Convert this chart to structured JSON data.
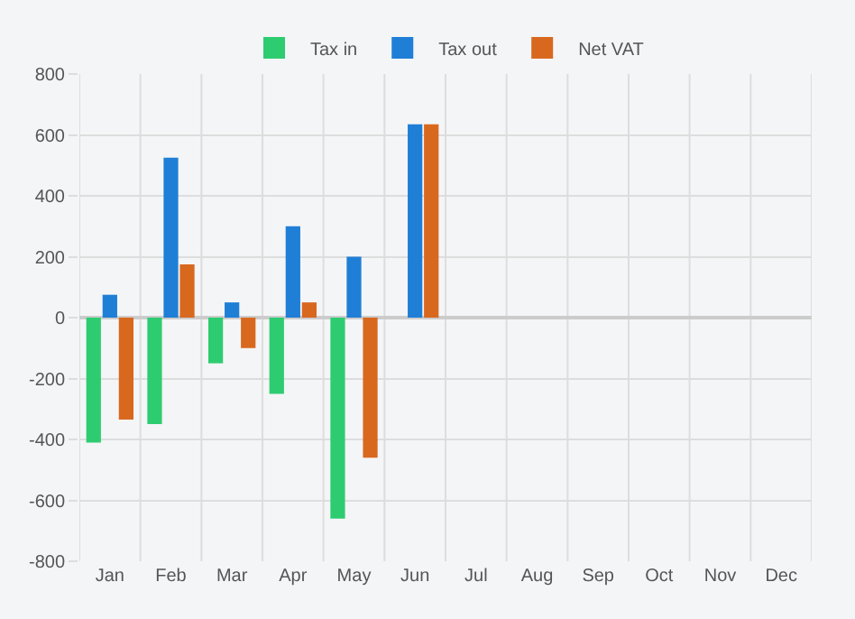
{
  "chart_data": {
    "type": "bar",
    "categories": [
      "Jan",
      "Feb",
      "Mar",
      "Apr",
      "May",
      "Jun",
      "Jul",
      "Aug",
      "Sep",
      "Oct",
      "Nov",
      "Dec"
    ],
    "series": [
      {
        "name": "Tax in",
        "color": "#2ecc71",
        "values": [
          -410,
          -350,
          -150,
          -250,
          -660,
          0,
          null,
          null,
          null,
          null,
          null,
          null
        ]
      },
      {
        "name": "Tax out",
        "color": "#1f7fd6",
        "values": [
          75,
          525,
          50,
          300,
          200,
          635,
          null,
          null,
          null,
          null,
          null,
          null
        ]
      },
      {
        "name": "Net VAT",
        "color": "#d9681f",
        "values": [
          -335,
          175,
          -100,
          50,
          -460,
          635,
          null,
          null,
          null,
          null,
          null,
          null
        ]
      }
    ],
    "ylim": [
      -800,
      800
    ],
    "yticks": [
      -800,
      -600,
      -400,
      -200,
      0,
      200,
      400,
      600,
      800
    ],
    "grid": true,
    "legend": "top"
  }
}
